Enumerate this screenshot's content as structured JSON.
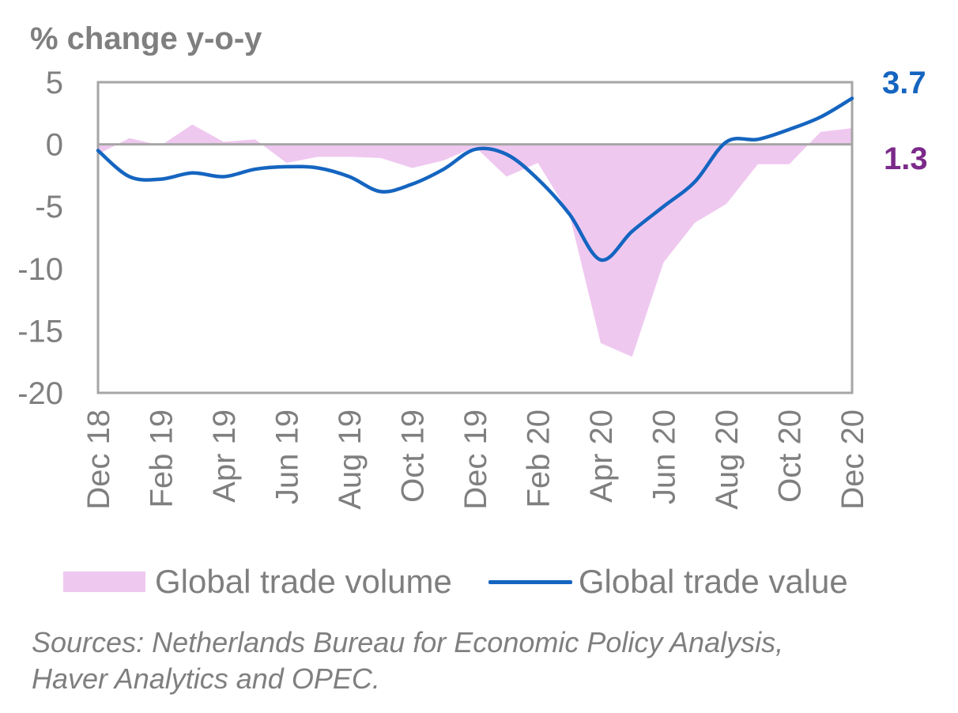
{
  "chart_data": {
    "type": "area+line",
    "title": "",
    "ylabel": "% change y-o-y",
    "xlabel": "",
    "ylim": [
      -20,
      5
    ],
    "yticks": [
      5,
      0,
      -5,
      -10,
      -15,
      -20
    ],
    "x": [
      "Dec 18",
      "Jan 19",
      "Feb 19",
      "Mar 19",
      "Apr 19",
      "May 19",
      "Jun 19",
      "Jul 19",
      "Aug 19",
      "Sep 19",
      "Oct 19",
      "Nov 19",
      "Dec 19",
      "Jan 20",
      "Feb 20",
      "Mar 20",
      "Apr 20",
      "May 20",
      "Jun 20",
      "Jul 20",
      "Aug 20",
      "Sep 20",
      "Oct 20",
      "Nov 20",
      "Dec 20"
    ],
    "xtick_labels": [
      "Dec 18",
      "Feb 19",
      "Apr 19",
      "Jun 19",
      "Aug 19",
      "Oct 19",
      "Dec 19",
      "Feb 20",
      "Apr 20",
      "Jun 20",
      "Aug 20",
      "Oct 20",
      "Dec 20"
    ],
    "grid": false,
    "legend_position": "bottom",
    "series": [
      {
        "name": "Global trade volume",
        "kind": "area",
        "color": "#efc8f0",
        "values": [
          -0.8,
          0.5,
          -0.1,
          1.6,
          0.2,
          0.4,
          -1.5,
          -1.0,
          -1.0,
          -1.1,
          -1.9,
          -1.3,
          -0.2,
          -2.6,
          -1.5,
          -5.6,
          -16.0,
          -17.1,
          -9.5,
          -6.3,
          -4.8,
          -1.6,
          -1.6,
          1.0,
          1.3
        ],
        "end_label": "1.3",
        "end_label_color": "#7b2a8a"
      },
      {
        "name": "Global trade value",
        "kind": "line",
        "color": "#1565c0",
        "values": [
          -0.5,
          -2.6,
          -2.8,
          -2.3,
          -2.6,
          -2.0,
          -1.8,
          -1.9,
          -2.6,
          -3.8,
          -3.2,
          -2.0,
          -0.4,
          -0.8,
          -2.8,
          -5.6,
          -9.3,
          -7.0,
          -5.0,
          -3.0,
          0.2,
          0.4,
          1.2,
          2.2,
          3.7
        ],
        "end_label": "3.7",
        "end_label_color": "#1565c0"
      }
    ],
    "axis_color": "#a6a6a6",
    "text_color": "#7f7f7f"
  },
  "legend": {
    "volume_label": "Global trade volume",
    "value_label": "Global trade value"
  },
  "sources": {
    "line1": "Sources: Netherlands Bureau for Economic Policy Analysis,",
    "line2": "Haver Analytics and OPEC."
  }
}
